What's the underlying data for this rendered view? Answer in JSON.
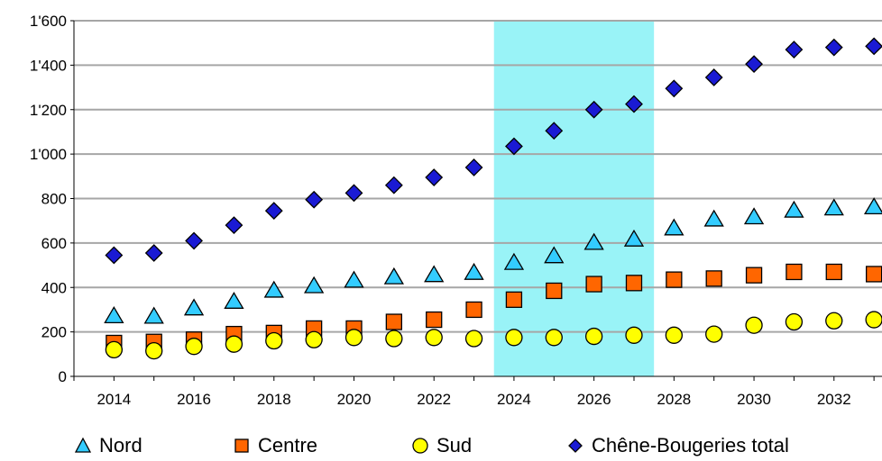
{
  "chart_data": {
    "type": "scatter",
    "title": "",
    "xlabel": "",
    "ylabel": "",
    "xlim": [
      2013,
      2033.2
    ],
    "ylim": [
      0,
      1600
    ],
    "x_ticks": [
      2014,
      2016,
      2018,
      2020,
      2022,
      2024,
      2026,
      2028,
      2030,
      2032
    ],
    "x_tick_labels": [
      "2014",
      "2016",
      "2018",
      "2020",
      "2022",
      "2024",
      "2026",
      "2028",
      "2030",
      "2032"
    ],
    "y_ticks": [
      0,
      200,
      400,
      600,
      800,
      1000,
      1200,
      1400,
      1600
    ],
    "y_tick_labels": [
      "0",
      "200",
      "400",
      "600",
      "800",
      "1'000",
      "1'200",
      "1'400",
      "1'600"
    ],
    "grid": "horizontal",
    "legend_position": "bottom",
    "highlight_band": {
      "from": 2023.5,
      "to": 2027.5,
      "color": "#99f3f7"
    },
    "x": [
      2014,
      2015,
      2016,
      2017,
      2018,
      2019,
      2020,
      2021,
      2022,
      2023,
      2024,
      2025,
      2026,
      2027,
      2028,
      2029,
      2030,
      2031,
      2032,
      2033
    ],
    "series": [
      {
        "name": "Nord",
        "marker": "triangle",
        "color": "#33ccff",
        "values": [
          270,
          268,
          305,
          335,
          385,
          405,
          430,
          445,
          455,
          465,
          510,
          540,
          600,
          615,
          665,
          705,
          715,
          745,
          755,
          760
        ]
      },
      {
        "name": "Centre",
        "marker": "square",
        "color": "#ff6600",
        "values": [
          150,
          155,
          165,
          190,
          195,
          215,
          215,
          245,
          255,
          300,
          345,
          385,
          415,
          420,
          435,
          440,
          455,
          470,
          470,
          460
        ]
      },
      {
        "name": "Sud",
        "marker": "circle",
        "color": "#ffff00",
        "values": [
          120,
          115,
          135,
          145,
          160,
          165,
          175,
          170,
          175,
          170,
          175,
          175,
          180,
          185,
          185,
          190,
          230,
          245,
          250,
          255
        ]
      },
      {
        "name": "Chêne-Bougeries total",
        "marker": "diamond",
        "color": "#1a1ad4",
        "values": [
          545,
          555,
          610,
          680,
          745,
          795,
          825,
          860,
          895,
          940,
          1035,
          1105,
          1200,
          1225,
          1295,
          1345,
          1405,
          1470,
          1480,
          1485
        ]
      }
    ]
  }
}
